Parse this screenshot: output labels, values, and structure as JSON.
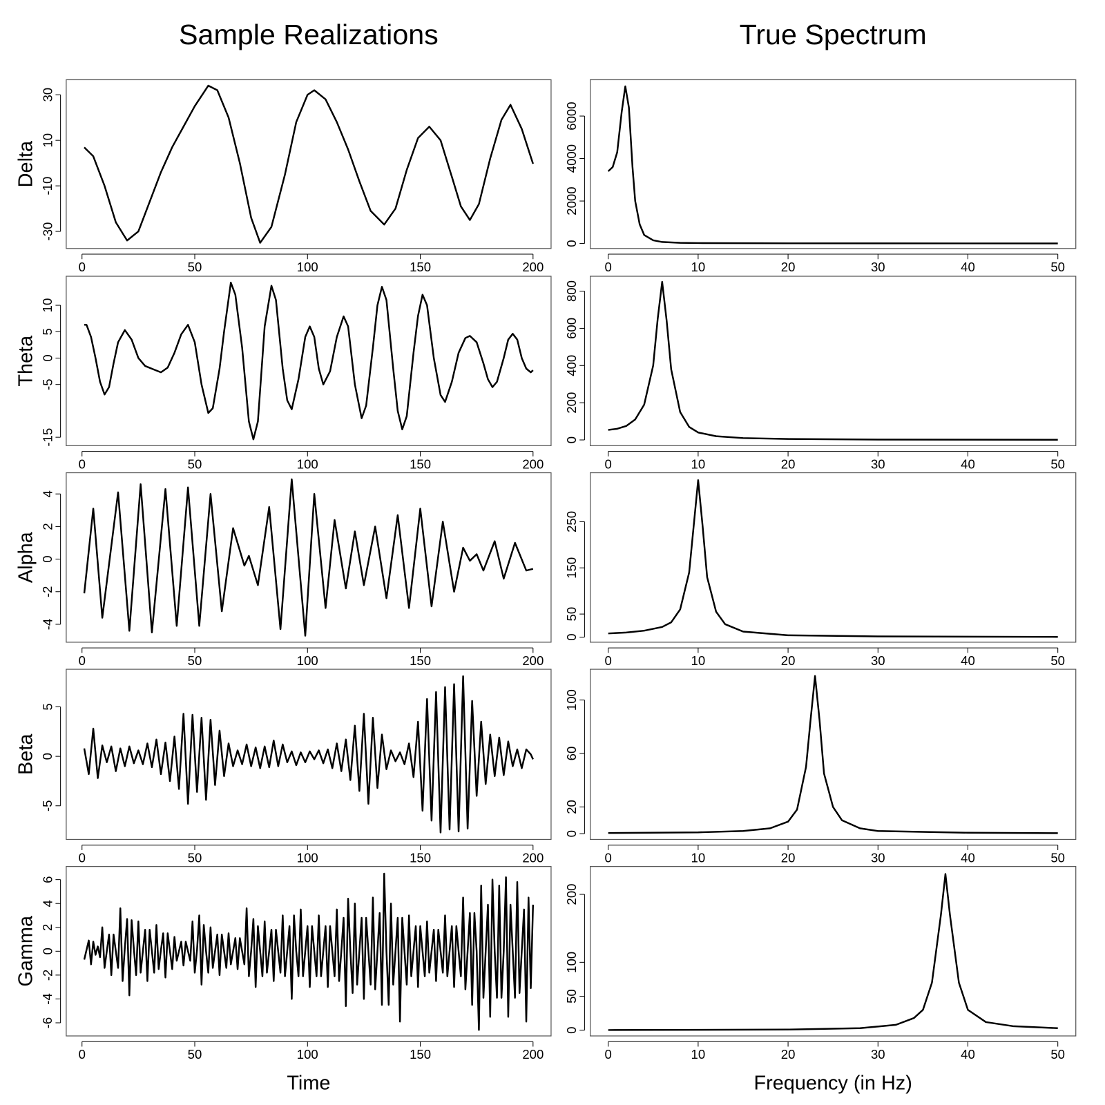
{
  "chart_data": [
    {
      "type": "line",
      "title": "Sample Realizations",
      "ylabel": "Delta",
      "color": "#000000",
      "x": [
        1,
        5,
        10,
        15,
        20,
        25,
        30,
        35,
        40,
        45,
        50,
        56,
        60,
        65,
        70,
        75,
        79,
        84,
        90,
        95,
        100,
        103,
        108,
        113,
        118,
        123,
        128,
        134,
        139,
        144,
        149,
        154,
        159,
        164,
        168,
        172,
        176,
        181,
        186,
        190,
        195,
        200
      ],
      "values": [
        6.9,
        3,
        -10,
        -26,
        -34,
        -30,
        -17,
        -4,
        7,
        16,
        25,
        34,
        32,
        20,
        0,
        -24,
        -35,
        -28,
        -5,
        18,
        30,
        32,
        28,
        18,
        6,
        -8,
        -21,
        -27,
        -20,
        -3,
        11,
        16,
        10,
        -6,
        -19,
        -25,
        -18,
        2,
        19,
        25.6,
        15,
        -0.3
      ],
      "xlim": [
        -7,
        208
      ],
      "xticks": [
        0,
        50,
        100,
        150,
        200
      ],
      "ylim": [
        -37.5,
        36.6
      ],
      "yticks": [
        -30,
        -10,
        10,
        30
      ]
    },
    {
      "type": "line",
      "title": "True Spectrum",
      "color": "#000000",
      "x": [
        0,
        0.5,
        1,
        1.5,
        1.9,
        2.3,
        2.7,
        3,
        3.5,
        4,
        5,
        6,
        8,
        10,
        20,
        30,
        50
      ],
      "values": [
        3400,
        3600,
        4300,
        6200,
        7400,
        6400,
        3600,
        2000,
        900,
        400,
        150,
        70,
        30,
        20,
        8,
        5,
        3
      ],
      "xlim": [
        -2,
        52
      ],
      "xticks": [
        0,
        10,
        20,
        30,
        40,
        50
      ],
      "ylim": [
        -235,
        7710
      ],
      "yticks": [
        0,
        2000,
        4000,
        6000
      ]
    },
    {
      "type": "line",
      "ylabel": "Theta",
      "color": "#000000",
      "x": [
        1,
        2,
        4,
        6,
        8,
        10,
        12,
        14,
        16,
        19,
        22,
        25,
        28,
        32,
        35,
        38,
        41,
        44,
        47,
        50,
        53,
        56,
        58,
        61,
        63,
        66,
        68,
        71,
        74,
        76,
        78,
        81,
        84,
        86,
        89,
        91,
        93,
        96,
        99,
        101,
        103,
        105,
        107,
        110,
        113,
        116,
        118,
        121,
        124,
        126,
        129,
        131,
        133,
        135,
        138,
        140,
        142,
        144,
        147,
        149,
        151,
        153,
        156,
        159,
        161,
        164,
        167,
        170,
        172,
        175,
        178,
        180,
        182,
        184,
        187,
        189,
        191,
        193,
        195,
        197,
        199,
        200
      ],
      "values": [
        6.3,
        6.3,
        4,
        0,
        -4.5,
        -6.9,
        -5.5,
        -1,
        3,
        5.3,
        3.5,
        0,
        -1.5,
        -2.2,
        -2.7,
        -1.8,
        1,
        4.5,
        6.3,
        3,
        -5,
        -10.4,
        -9.5,
        -2,
        5,
        14.3,
        12,
        2,
        -12,
        -15.4,
        -12,
        6,
        13.7,
        11,
        -2,
        -8,
        -9.7,
        -4,
        4,
        6,
        4,
        -2,
        -5,
        -2.5,
        4,
        7.9,
        6,
        -5,
        -11.4,
        -9,
        2,
        10,
        13.5,
        11,
        -2,
        -10,
        -13.5,
        -11,
        1,
        8,
        12,
        10,
        0,
        -7,
        -8.3,
        -4.5,
        1,
        3.8,
        4.2,
        3,
        -1,
        -4,
        -5.5,
        -4.5,
        0,
        3.5,
        4.6,
        3.5,
        0,
        -2,
        -2.7,
        -2.3
      ],
      "xlim": [
        -7,
        208
      ],
      "xticks": [
        0,
        50,
        100,
        150,
        200
      ],
      "ylim": [
        -16.6,
        15.5
      ],
      "yticks": [
        -15,
        -5,
        0,
        5,
        10
      ]
    },
    {
      "type": "line",
      "color": "#000000",
      "x": [
        0,
        1,
        2,
        3,
        4,
        5,
        5.5,
        6,
        6.5,
        7,
        8,
        9,
        10,
        12,
        15,
        20,
        30,
        50
      ],
      "values": [
        54,
        60,
        75,
        110,
        190,
        400,
        650,
        850,
        640,
        380,
        150,
        70,
        40,
        20,
        10,
        5,
        2,
        1
      ],
      "xlim": [
        -2,
        52
      ],
      "xticks": [
        0,
        10,
        20,
        30,
        40,
        50
      ],
      "ylim": [
        -31,
        880
      ],
      "yticks": [
        0,
        200,
        400,
        600,
        800
      ]
    },
    {
      "type": "line",
      "ylabel": "Alpha",
      "color": "#000000",
      "x": [
        1,
        5,
        9,
        16,
        21,
        26,
        31,
        37,
        42,
        47,
        52,
        57,
        62,
        67,
        72,
        74,
        78,
        83,
        88,
        93,
        99,
        103,
        108,
        112,
        117,
        121,
        125,
        130,
        135,
        140,
        145,
        150,
        155,
        160,
        165,
        169,
        172,
        175,
        178,
        183,
        187,
        192,
        197,
        200
      ],
      "values": [
        -2.1,
        3.1,
        -3.6,
        4.1,
        -4.4,
        4.6,
        -4.5,
        4.3,
        -4.1,
        4.4,
        -4.1,
        4.0,
        -3.2,
        1.9,
        -0.4,
        0.2,
        -1.6,
        3.2,
        -4.3,
        4.9,
        -4.7,
        4.0,
        -3.0,
        2.4,
        -1.8,
        1.7,
        -1.6,
        2.0,
        -2.4,
        2.7,
        -3.0,
        3.1,
        -2.9,
        2.3,
        -2.0,
        0.7,
        -0.1,
        0.3,
        -0.7,
        1.1,
        -1.2,
        1.0,
        -0.7,
        -0.6
      ],
      "xlim": [
        -7,
        208
      ],
      "xticks": [
        0,
        50,
        100,
        150,
        200
      ],
      "ylim": [
        -5.1,
        5.3
      ],
      "yticks": [
        -4,
        -2,
        0,
        2,
        4
      ]
    },
    {
      "type": "line",
      "color": "#000000",
      "x": [
        0,
        2,
        4,
        6,
        7,
        8,
        9,
        9.5,
        10,
        10.5,
        11,
        12,
        13,
        15,
        20,
        30,
        50
      ],
      "values": [
        8,
        10,
        14,
        22,
        32,
        60,
        140,
        240,
        340,
        240,
        130,
        55,
        28,
        12,
        4,
        1.5,
        0.5
      ],
      "xlim": [
        -2,
        52
      ],
      "xticks": [
        0,
        10,
        20,
        30,
        40,
        50
      ],
      "ylim": [
        -11,
        356
      ],
      "yticks": [
        0,
        50,
        150,
        250
      ]
    },
    {
      "type": "line",
      "ylabel": "Beta",
      "color": "#000000",
      "x": [
        1,
        3,
        5,
        7,
        9,
        11,
        13,
        15,
        17,
        19,
        21,
        23,
        25,
        27,
        29,
        31,
        33,
        35,
        37,
        39,
        41,
        43,
        45,
        47,
        49,
        51,
        53,
        55,
        57,
        59,
        61,
        63,
        65,
        67,
        69,
        71,
        73,
        75,
        77,
        79,
        81,
        83,
        85,
        87,
        89,
        91,
        93,
        95,
        97,
        99,
        101,
        103,
        105,
        107,
        109,
        111,
        113,
        115,
        117,
        119,
        121,
        123,
        125,
        127,
        129,
        131,
        133,
        135,
        137,
        139,
        141,
        143,
        145,
        147,
        149,
        151,
        153,
        155,
        157,
        159,
        161,
        163,
        165,
        167,
        169,
        171,
        173,
        175,
        177,
        179,
        181,
        183,
        185,
        187,
        189,
        191,
        193,
        195,
        197,
        199,
        200
      ],
      "values": [
        0.8,
        -1.8,
        2.8,
        -2.2,
        1.1,
        -0.6,
        1.0,
        -1.5,
        0.8,
        -1.0,
        1.0,
        -0.7,
        0.6,
        -0.8,
        1.3,
        -1.1,
        1.7,
        -1.8,
        1.4,
        -2.5,
        2.0,
        -3.3,
        4.3,
        -4.8,
        4.2,
        -3.6,
        3.9,
        -4.4,
        3.7,
        -2.9,
        2.6,
        -2.0,
        1.3,
        -1.0,
        0.6,
        -0.8,
        1.2,
        -1.0,
        0.9,
        -1.2,
        1.0,
        -1.1,
        1.6,
        -1.0,
        1.2,
        -0.6,
        0.5,
        -0.9,
        0.4,
        -0.6,
        0.5,
        -0.3,
        0.6,
        -0.7,
        0.7,
        -1.2,
        1.3,
        -1.5,
        1.7,
        -2.4,
        3.1,
        -3.5,
        4.3,
        -4.8,
        3.9,
        -3.2,
        2.2,
        -1.3,
        0.6,
        -0.5,
        0.4,
        -0.8,
        1.3,
        -2.1,
        3.5,
        -5.5,
        5.8,
        -6.5,
        6.5,
        -7.7,
        7.0,
        -7.4,
        7.3,
        -7.6,
        8.1,
        -7.3,
        5.6,
        -4.0,
        3.5,
        -2.8,
        2.2,
        -2.0,
        1.9,
        -1.9,
        1.5,
        -1.0,
        0.7,
        -1.2,
        0.7,
        0.2,
        -0.3
      ],
      "xlim": [
        -7,
        208
      ],
      "xticks": [
        0,
        50,
        100,
        150,
        200
      ],
      "ylim": [
        -8.4,
        8.8
      ],
      "yticks": [
        -5,
        0,
        5
      ]
    },
    {
      "type": "line",
      "color": "#000000",
      "x": [
        0,
        10,
        15,
        18,
        20,
        21,
        22,
        22.5,
        23,
        23.5,
        24,
        25,
        26,
        28,
        30,
        40,
        50
      ],
      "values": [
        0.5,
        1,
        2,
        4,
        9,
        18,
        50,
        85,
        118,
        85,
        45,
        20,
        10,
        4,
        2,
        0.7,
        0.4
      ],
      "xlim": [
        -2,
        52
      ],
      "xticks": [
        0,
        10,
        20,
        30,
        40,
        50
      ],
      "ylim": [
        -4.3,
        123
      ],
      "yticks": [
        0,
        20,
        60,
        100
      ]
    },
    {
      "type": "line",
      "ylabel": "Gamma",
      "xlabel": "Time",
      "color": "#000000",
      "x": [
        1,
        2,
        3,
        4,
        5,
        6,
        7,
        8,
        9,
        10,
        11,
        12,
        13,
        14,
        15,
        16,
        17,
        18,
        19,
        20,
        21,
        22,
        23,
        24,
        25,
        26,
        27,
        28,
        29,
        30,
        31,
        32,
        33,
        34,
        35,
        36,
        37,
        38,
        39,
        40,
        41,
        42,
        43,
        44,
        45,
        46,
        47,
        48,
        49,
        50,
        51,
        52,
        53,
        54,
        55,
        56,
        57,
        58,
        59,
        60,
        61,
        62,
        63,
        64,
        65,
        66,
        67,
        68,
        69,
        70,
        71,
        72,
        73,
        74,
        75,
        76,
        77,
        78,
        79,
        80,
        81,
        82,
        83,
        84,
        85,
        86,
        87,
        88,
        89,
        90,
        91,
        92,
        93,
        94,
        95,
        96,
        97,
        98,
        99,
        100,
        101,
        102,
        103,
        104,
        105,
        106,
        107,
        108,
        109,
        110,
        111,
        112,
        113,
        114,
        115,
        116,
        117,
        118,
        119,
        120,
        121,
        122,
        123,
        124,
        125,
        126,
        127,
        128,
        129,
        130,
        131,
        132,
        133,
        134,
        135,
        136,
        137,
        138,
        139,
        140,
        141,
        142,
        143,
        144,
        145,
        146,
        147,
        148,
        149,
        150,
        151,
        152,
        153,
        154,
        155,
        156,
        157,
        158,
        159,
        160,
        161,
        162,
        163,
        164,
        165,
        166,
        167,
        168,
        169,
        170,
        171,
        172,
        173,
        174,
        175,
        176,
        177,
        178,
        179,
        180,
        181,
        182,
        183,
        184,
        185,
        186,
        187,
        188,
        189,
        190,
        191,
        192,
        193,
        194,
        195,
        196,
        197,
        198,
        199,
        200
      ],
      "values": [
        -0.7,
        0.1,
        0.9,
        -1.1,
        0.8,
        -0.3,
        0.4,
        -0.5,
        2,
        -1.4,
        0,
        1.4,
        -2,
        1.4,
        0,
        -1.4,
        3.6,
        -2.5,
        0.3,
        2.7,
        -3.7,
        2.6,
        0.2,
        -2.0,
        2.5,
        -1.8,
        0,
        1.8,
        -2.5,
        1.8,
        0,
        -1.8,
        2.2,
        -1.5,
        0.1,
        1.5,
        -2.2,
        1.5,
        0,
        -1.5,
        1.2,
        -0.8,
        0,
        0.8,
        -1.2,
        0.8,
        0,
        -0.8,
        2.5,
        -1.8,
        0.1,
        3.0,
        -2.8,
        2.2,
        0,
        -1.8,
        2,
        -1.4,
        0,
        1.4,
        -2,
        1.4,
        0,
        -1.4,
        1.5,
        -1.1,
        0,
        1.1,
        -1.5,
        1.1,
        0,
        -1.1,
        3.6,
        -2.1,
        0,
        2.7,
        -3.0,
        2.1,
        0,
        -2.1,
        2.5,
        -1.8,
        0,
        1.8,
        -2.5,
        1.8,
        0,
        -1.8,
        3,
        -2.1,
        0,
        2.1,
        -4.0,
        3.0,
        0,
        -2.1,
        3.5,
        -2.1,
        0,
        2.1,
        -3,
        2.1,
        0,
        -2.1,
        3,
        -2.1,
        0,
        2.1,
        -3,
        2.1,
        0,
        -2.1,
        3.5,
        -2.5,
        0,
        2.8,
        -4.6,
        4.4,
        0,
        -3.5,
        4,
        -2.8,
        0,
        2.8,
        -4,
        2.8,
        0,
        -2.8,
        4.5,
        -3.2,
        0,
        3.2,
        -4.5,
        6.5,
        0,
        -4.5,
        4,
        -2.8,
        0,
        2.8,
        -5.9,
        2.8,
        0,
        -2.8,
        3,
        -2.1,
        0,
        2.1,
        -3,
        2.1,
        0,
        -2.1,
        2.5,
        -1.8,
        0,
        1.8,
        -2.5,
        1.8,
        0,
        -1.8,
        3,
        -2.1,
        0,
        2.1,
        -3,
        2.1,
        0,
        -2.1,
        4.5,
        -3.2,
        0,
        3.2,
        -4.5,
        3.2,
        0,
        -6.6,
        5.5,
        -3.9,
        0,
        3.9,
        -5.5,
        6.0,
        0,
        -3.9,
        5.5,
        -3.9,
        0,
        6.2,
        -5.5,
        3.9,
        0,
        -3.9,
        5.8,
        -3.5,
        0,
        3.5,
        -5.9,
        4.5,
        -3.1,
        3.9
      ],
      "xlim": [
        -7,
        208
      ],
      "xticks": [
        0,
        50,
        100,
        150,
        200
      ],
      "ylim": [
        -7.1,
        7.1
      ],
      "yticks": [
        -6,
        -4,
        -2,
        0,
        2,
        4,
        6
      ]
    },
    {
      "type": "line",
      "xlabel": "Frequency (in Hz)",
      "color": "#000000",
      "x": [
        0,
        20,
        28,
        32,
        34,
        35,
        36,
        37,
        37.5,
        38,
        39,
        40,
        42,
        45,
        50
      ],
      "values": [
        0.3,
        1,
        3,
        8,
        18,
        30,
        70,
        170,
        230,
        170,
        70,
        30,
        12,
        6,
        3
      ],
      "xlim": [
        -2,
        52
      ],
      "xticks": [
        0,
        10,
        20,
        30,
        40,
        50
      ],
      "ylim": [
        -8.4,
        241
      ],
      "yticks": [
        0,
        50,
        100,
        200
      ]
    }
  ]
}
